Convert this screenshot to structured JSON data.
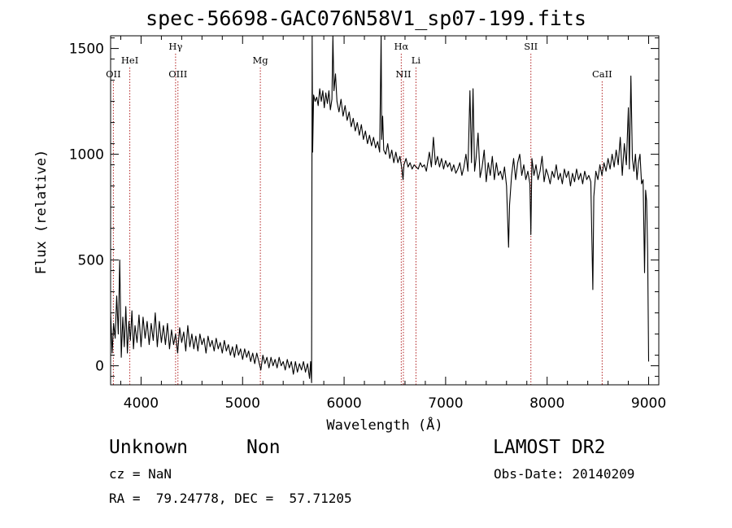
{
  "figure": {
    "title": "spec-56698-GAC076N58V1_sp07-199.fits",
    "info": {
      "class": "Unknown",
      "subclass": "Non",
      "survey": "LAMOST DR2",
      "cz": "cz = NaN",
      "obs_date": "Obs-Date: 20140209",
      "radec": "RA =  79.24778, DEC =  57.71205"
    },
    "colors": {
      "spectrum": "#000000",
      "lines": "#b22222",
      "axes": "#000000",
      "background": "#ffffff"
    }
  },
  "chart_data": {
    "type": "line",
    "title": "spec-56698-GAC076N58V1_sp07-199.fits",
    "xlabel": "Wavelength (Å)",
    "ylabel": "Flux (relative)",
    "xlim": [
      3700,
      9100
    ],
    "ylim": [
      -90,
      1560
    ],
    "x_ticks": [
      4000,
      5000,
      6000,
      7000,
      8000,
      9000
    ],
    "y_ticks": [
      0,
      500,
      1000,
      1500
    ],
    "grid": false,
    "legend": "none",
    "series": [
      {
        "values": [
          [
            3700,
            250
          ],
          [
            3715,
            60
          ],
          [
            3730,
            200
          ],
          [
            3745,
            130
          ],
          [
            3760,
            330
          ],
          [
            3775,
            150
          ],
          [
            3790,
            500
          ],
          [
            3805,
            40
          ],
          [
            3820,
            230
          ],
          [
            3835,
            90
          ],
          [
            3850,
            280
          ],
          [
            3865,
            60
          ],
          [
            3880,
            210
          ],
          [
            3895,
            120
          ],
          [
            3910,
            260
          ],
          [
            3925,
            80
          ],
          [
            3940,
            190
          ],
          [
            3960,
            110
          ],
          [
            3980,
            240
          ],
          [
            4000,
            90
          ],
          [
            4020,
            230
          ],
          [
            4040,
            130
          ],
          [
            4060,
            210
          ],
          [
            4080,
            100
          ],
          [
            4100,
            200
          ],
          [
            4120,
            120
          ],
          [
            4140,
            250
          ],
          [
            4160,
            90
          ],
          [
            4180,
            210
          ],
          [
            4200,
            110
          ],
          [
            4220,
            190
          ],
          [
            4240,
            100
          ],
          [
            4260,
            200
          ],
          [
            4280,
            80
          ],
          [
            4300,
            170
          ],
          [
            4320,
            100
          ],
          [
            4340,
            150
          ],
          [
            4360,
            60
          ],
          [
            4380,
            180
          ],
          [
            4400,
            110
          ],
          [
            4420,
            160
          ],
          [
            4440,
            70
          ],
          [
            4460,
            190
          ],
          [
            4480,
            90
          ],
          [
            4500,
            150
          ],
          [
            4520,
            80
          ],
          [
            4540,
            140
          ],
          [
            4560,
            70
          ],
          [
            4580,
            150
          ],
          [
            4600,
            100
          ],
          [
            4620,
            130
          ],
          [
            4640,
            60
          ],
          [
            4660,
            140
          ],
          [
            4680,
            90
          ],
          [
            4700,
            120
          ],
          [
            4720,
            70
          ],
          [
            4740,
            130
          ],
          [
            4760,
            80
          ],
          [
            4780,
            110
          ],
          [
            4800,
            60
          ],
          [
            4820,
            120
          ],
          [
            4840,
            70
          ],
          [
            4860,
            100
          ],
          [
            4880,
            50
          ],
          [
            4900,
            90
          ],
          [
            4920,
            40
          ],
          [
            4940,
            100
          ],
          [
            4960,
            50
          ],
          [
            4980,
            80
          ],
          [
            5000,
            30
          ],
          [
            5020,
            80
          ],
          [
            5040,
            40
          ],
          [
            5060,
            70
          ],
          [
            5080,
            20
          ],
          [
            5100,
            60
          ],
          [
            5120,
            10
          ],
          [
            5140,
            60
          ],
          [
            5160,
            20
          ],
          [
            5180,
            -20
          ],
          [
            5200,
            50
          ],
          [
            5220,
            10
          ],
          [
            5240,
            40
          ],
          [
            5260,
            -10
          ],
          [
            5280,
            40
          ],
          [
            5300,
            0
          ],
          [
            5320,
            30
          ],
          [
            5340,
            -10
          ],
          [
            5360,
            40
          ],
          [
            5380,
            0
          ],
          [
            5400,
            20
          ],
          [
            5420,
            -20
          ],
          [
            5440,
            30
          ],
          [
            5460,
            -10
          ],
          [
            5480,
            20
          ],
          [
            5500,
            -40
          ],
          [
            5520,
            20
          ],
          [
            5540,
            -30
          ],
          [
            5560,
            10
          ],
          [
            5580,
            -20
          ],
          [
            5600,
            20
          ],
          [
            5620,
            -30
          ],
          [
            5640,
            10
          ],
          [
            5660,
            -60
          ],
          [
            5670,
            20
          ],
          [
            5680,
            -80
          ],
          [
            5685,
            1560
          ],
          [
            5690,
            1010
          ],
          [
            5700,
            1280
          ],
          [
            5715,
            1250
          ],
          [
            5730,
            1270
          ],
          [
            5745,
            1230
          ],
          [
            5760,
            1310
          ],
          [
            5775,
            1250
          ],
          [
            5790,
            1300
          ],
          [
            5805,
            1220
          ],
          [
            5820,
            1290
          ],
          [
            5835,
            1240
          ],
          [
            5850,
            1300
          ],
          [
            5865,
            1210
          ],
          [
            5880,
            1260
          ],
          [
            5890,
            1560
          ],
          [
            5900,
            1300
          ],
          [
            5915,
            1380
          ],
          [
            5930,
            1250
          ],
          [
            5950,
            1200
          ],
          [
            5970,
            1260
          ],
          [
            5990,
            1180
          ],
          [
            6010,
            1230
          ],
          [
            6030,
            1160
          ],
          [
            6050,
            1200
          ],
          [
            6070,
            1130
          ],
          [
            6090,
            1170
          ],
          [
            6110,
            1110
          ],
          [
            6130,
            1150
          ],
          [
            6150,
            1090
          ],
          [
            6170,
            1140
          ],
          [
            6190,
            1070
          ],
          [
            6210,
            1110
          ],
          [
            6230,
            1050
          ],
          [
            6250,
            1090
          ],
          [
            6270,
            1040
          ],
          [
            6290,
            1080
          ],
          [
            6310,
            1030
          ],
          [
            6330,
            1060
          ],
          [
            6350,
            1010
          ],
          [
            6365,
            1560
          ],
          [
            6370,
            1070
          ],
          [
            6380,
            1180
          ],
          [
            6390,
            1020
          ],
          [
            6410,
            1000
          ],
          [
            6430,
            1050
          ],
          [
            6450,
            980
          ],
          [
            6470,
            1020
          ],
          [
            6490,
            960
          ],
          [
            6510,
            1010
          ],
          [
            6530,
            960
          ],
          [
            6550,
            990
          ],
          [
            6570,
            930
          ],
          [
            6580,
            880
          ],
          [
            6590,
            950
          ],
          [
            6610,
            980
          ],
          [
            6630,
            940
          ],
          [
            6650,
            960
          ],
          [
            6670,
            930
          ],
          [
            6690,
            950
          ],
          [
            6710,
            940
          ],
          [
            6730,
            930
          ],
          [
            6750,
            960
          ],
          [
            6770,
            940
          ],
          [
            6790,
            950
          ],
          [
            6810,
            920
          ],
          [
            6840,
            1010
          ],
          [
            6860,
            940
          ],
          [
            6880,
            1080
          ],
          [
            6900,
            950
          ],
          [
            6920,
            990
          ],
          [
            6940,
            940
          ],
          [
            6960,
            980
          ],
          [
            6980,
            930
          ],
          [
            7000,
            970
          ],
          [
            7020,
            940
          ],
          [
            7040,
            960
          ],
          [
            7060,
            920
          ],
          [
            7080,
            950
          ],
          [
            7100,
            910
          ],
          [
            7120,
            930
          ],
          [
            7140,
            960
          ],
          [
            7160,
            900
          ],
          [
            7180,
            940
          ],
          [
            7200,
            1000
          ],
          [
            7220,
            920
          ],
          [
            7240,
            1300
          ],
          [
            7255,
            960
          ],
          [
            7270,
            1310
          ],
          [
            7285,
            920
          ],
          [
            7300,
            980
          ],
          [
            7320,
            1100
          ],
          [
            7340,
            890
          ],
          [
            7360,
            940
          ],
          [
            7380,
            1020
          ],
          [
            7400,
            870
          ],
          [
            7420,
            960
          ],
          [
            7440,
            900
          ],
          [
            7460,
            990
          ],
          [
            7480,
            880
          ],
          [
            7500,
            960
          ],
          [
            7520,
            900
          ],
          [
            7540,
            920
          ],
          [
            7560,
            880
          ],
          [
            7580,
            940
          ],
          [
            7600,
            850
          ],
          [
            7620,
            560
          ],
          [
            7630,
            760
          ],
          [
            7650,
            900
          ],
          [
            7670,
            980
          ],
          [
            7690,
            880
          ],
          [
            7710,
            960
          ],
          [
            7730,
            1000
          ],
          [
            7750,
            900
          ],
          [
            7770,
            950
          ],
          [
            7790,
            880
          ],
          [
            7810,
            920
          ],
          [
            7830,
            860
          ],
          [
            7840,
            620
          ],
          [
            7850,
            980
          ],
          [
            7870,
            900
          ],
          [
            7890,
            950
          ],
          [
            7910,
            880
          ],
          [
            7930,
            920
          ],
          [
            7950,
            990
          ],
          [
            7970,
            870
          ],
          [
            7990,
            930
          ],
          [
            8010,
            900
          ],
          [
            8030,
            860
          ],
          [
            8050,
            920
          ],
          [
            8070,
            890
          ],
          [
            8090,
            950
          ],
          [
            8110,
            880
          ],
          [
            8130,
            910
          ],
          [
            8150,
            860
          ],
          [
            8170,
            930
          ],
          [
            8190,
            890
          ],
          [
            8210,
            920
          ],
          [
            8230,
            850
          ],
          [
            8250,
            910
          ],
          [
            8270,
            870
          ],
          [
            8290,
            930
          ],
          [
            8310,
            880
          ],
          [
            8330,
            910
          ],
          [
            8350,
            860
          ],
          [
            8370,
            920
          ],
          [
            8390,
            880
          ],
          [
            8410,
            900
          ],
          [
            8430,
            870
          ],
          [
            8450,
            360
          ],
          [
            8460,
            800
          ],
          [
            8480,
            920
          ],
          [
            8500,
            880
          ],
          [
            8520,
            950
          ],
          [
            8540,
            900
          ],
          [
            8560,
            960
          ],
          [
            8580,
            920
          ],
          [
            8600,
            980
          ],
          [
            8620,
            930
          ],
          [
            8640,
            1000
          ],
          [
            8660,
            940
          ],
          [
            8680,
            1020
          ],
          [
            8700,
            950
          ],
          [
            8720,
            1080
          ],
          [
            8740,
            900
          ],
          [
            8760,
            1050
          ],
          [
            8780,
            950
          ],
          [
            8800,
            1220
          ],
          [
            8810,
            930
          ],
          [
            8825,
            1370
          ],
          [
            8840,
            980
          ],
          [
            8855,
            920
          ],
          [
            8870,
            1000
          ],
          [
            8885,
            880
          ],
          [
            8900,
            960
          ],
          [
            8915,
            1000
          ],
          [
            8930,
            860
          ],
          [
            8945,
            880
          ],
          [
            8960,
            440
          ],
          [
            8970,
            830
          ],
          [
            8980,
            780
          ],
          [
            8990,
            540
          ],
          [
            9000,
            20
          ]
        ]
      }
    ],
    "reference_lines": [
      {
        "label": "OII",
        "wavelength": 3727,
        "row": 3
      },
      {
        "label": "HeI",
        "wavelength": 3889,
        "row": 2
      },
      {
        "label": "Hγ",
        "wavelength": 4340,
        "row": 1
      },
      {
        "label": "OIII",
        "wavelength": 4363,
        "row": 3
      },
      {
        "label": "Mg",
        "wavelength": 5175,
        "row": 2
      },
      {
        "label": "Hα",
        "wavelength": 6563,
        "row": 1
      },
      {
        "label": "NII",
        "wavelength": 6584,
        "row": 3
      },
      {
        "label": "Li",
        "wavelength": 6708,
        "row": 2
      },
      {
        "label": "SII",
        "wavelength": 7840,
        "row": 1
      },
      {
        "label": "CaII",
        "wavelength": 8542,
        "row": 3
      }
    ]
  }
}
